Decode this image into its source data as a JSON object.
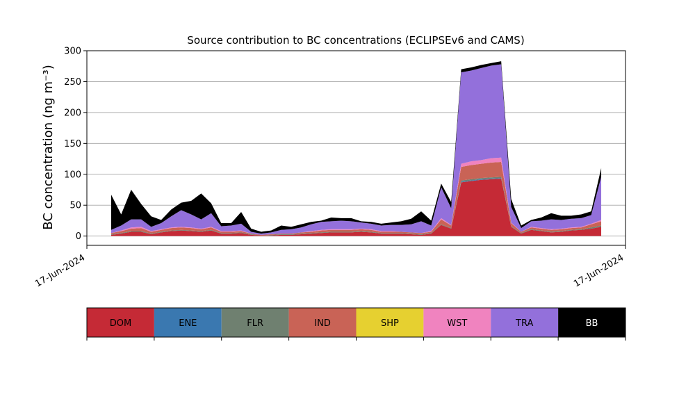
{
  "chart_data": {
    "type": "stacked-area",
    "title": "Source contribution to BC concentrations (ECLIPSEv6 and CAMS)",
    "y_label": "BC concentration (ng m⁻³)",
    "categories": [
      null,
      null,
      null,
      null,
      null,
      null,
      null,
      null,
      null,
      null,
      null,
      null,
      null,
      null,
      null,
      null,
      null,
      null,
      null,
      null,
      null,
      null,
      null,
      null,
      null,
      null,
      null,
      null,
      null,
      null,
      null,
      null,
      null,
      null,
      null,
      null,
      null,
      null,
      null,
      null,
      null,
      null,
      null,
      null,
      null,
      null,
      null,
      null,
      null,
      null
    ],
    "xlim": [
      -2.43,
      51.43
    ],
    "xticks": [
      {
        "value": -2.43,
        "label": "17-Jun-2024"
      },
      {
        "value": 51.43,
        "label": "17-Jun-2024"
      }
    ],
    "ylim": [
      -15,
      300
    ],
    "yticks": [
      0,
      50,
      100,
      150,
      200,
      250,
      300
    ],
    "grid": true,
    "series": [
      {
        "name": "DOM",
        "color": "#c52a36",
        "values": [
          2,
          4,
          7,
          7,
          3,
          6,
          8,
          9,
          8,
          7,
          9,
          4,
          4,
          5,
          2,
          1,
          1,
          2,
          2,
          3,
          4,
          5,
          6,
          6,
          6,
          7,
          6,
          4,
          4,
          4,
          3,
          2,
          4,
          18,
          12,
          87,
          89,
          91,
          92,
          93,
          15,
          4,
          10,
          8,
          6,
          7,
          9,
          10,
          12,
          15
        ]
      },
      {
        "name": "ENE",
        "color": "#3a78b0",
        "values": [
          0,
          0,
          0,
          0,
          0,
          0,
          0,
          0,
          0,
          0,
          0,
          0,
          0,
          0,
          0,
          0,
          0,
          0,
          0,
          0,
          0,
          0,
          0,
          0,
          0,
          0,
          0,
          0,
          0,
          0,
          0,
          0,
          0,
          0,
          0,
          1,
          1,
          1,
          1,
          1,
          0,
          0,
          0,
          0,
          0,
          0,
          0,
          0,
          0,
          0
        ]
      },
      {
        "name": "FLR",
        "color": "#6f8070",
        "values": [
          1,
          1,
          1,
          1,
          1,
          1,
          1,
          1,
          1,
          1,
          1,
          1,
          1,
          1,
          1,
          0,
          1,
          1,
          1,
          1,
          1,
          1,
          1,
          1,
          1,
          1,
          1,
          1,
          1,
          1,
          1,
          1,
          1,
          1,
          1,
          2,
          2,
          2,
          2,
          2,
          1,
          1,
          1,
          1,
          1,
          1,
          1,
          1,
          2,
          2
        ]
      },
      {
        "name": "IND",
        "color": "#c96356",
        "values": [
          2,
          3,
          4,
          5,
          3,
          3,
          4,
          4,
          4,
          3,
          4,
          2,
          2,
          2,
          1,
          1,
          1,
          1,
          1,
          2,
          2,
          3,
          3,
          3,
          3,
          3,
          3,
          2,
          2,
          2,
          2,
          2,
          2,
          8,
          4,
          22,
          23,
          23,
          24,
          24,
          5,
          2,
          3,
          3,
          3,
          3,
          3,
          3,
          5,
          7
        ]
      },
      {
        "name": "SHP",
        "color": "#e6d030",
        "values": [
          0,
          0,
          0,
          0,
          0,
          0,
          0,
          0,
          0,
          0,
          0,
          0,
          0,
          0,
          0,
          0,
          0,
          0,
          0,
          0,
          0,
          0,
          0,
          0,
          0,
          0,
          0,
          0,
          0,
          0,
          0,
          0,
          0,
          0,
          0,
          0,
          0,
          0,
          0,
          0,
          0,
          0,
          0,
          0,
          0,
          0,
          0,
          0,
          0,
          0
        ]
      },
      {
        "name": "WST",
        "color": "#f083bf",
        "values": [
          0,
          1,
          2,
          2,
          1,
          1,
          1,
          1,
          1,
          1,
          1,
          1,
          1,
          1,
          0,
          0,
          0,
          0,
          0,
          0,
          1,
          1,
          1,
          1,
          1,
          1,
          1,
          1,
          1,
          0,
          0,
          0,
          1,
          2,
          1,
          5,
          6,
          6,
          7,
          7,
          1,
          0,
          1,
          1,
          1,
          1,
          1,
          1,
          1,
          2
        ]
      },
      {
        "name": "TRA",
        "color": "#9370db",
        "values": [
          5,
          8,
          13,
          12,
          7,
          10,
          18,
          27,
          21,
          15,
          22,
          8,
          9,
          11,
          3,
          2,
          3,
          6,
          7,
          8,
          11,
          13,
          13,
          14,
          13,
          10,
          9,
          9,
          10,
          11,
          13,
          19,
          9,
          50,
          27,
          148,
          147,
          149,
          150,
          151,
          25,
          6,
          9,
          12,
          16,
          14,
          14,
          14,
          14,
          70
        ]
      },
      {
        "name": "BB",
        "color": "#000000",
        "values": [
          57,
          18,
          48,
          25,
          17,
          5,
          11,
          12,
          22,
          42,
          16,
          5,
          4,
          19,
          5,
          3,
          3,
          7,
          4,
          5,
          4,
          2,
          6,
          4,
          5,
          2,
          3,
          3,
          4,
          6,
          9,
          16,
          8,
          6,
          10,
          5,
          5,
          5,
          4,
          5,
          13,
          4,
          2,
          5,
          10,
          7,
          5,
          6,
          6,
          14
        ]
      }
    ]
  }
}
